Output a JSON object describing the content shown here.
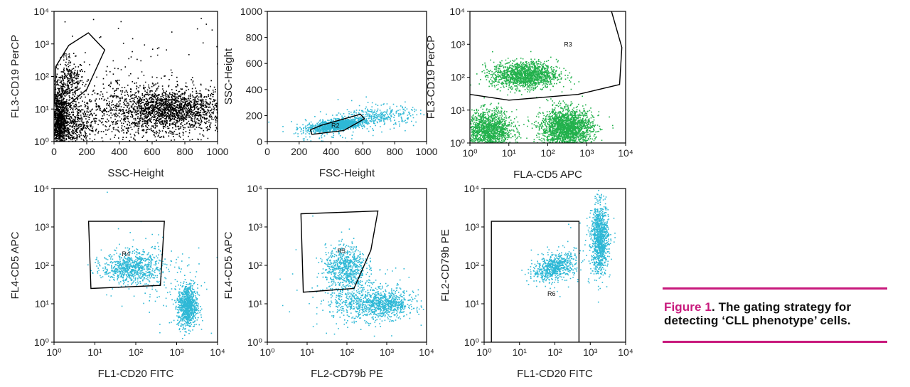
{
  "chart_data": [
    {
      "type": "scatter",
      "xlabel": "SSC-Height",
      "ylabel": "FL3-CD19 PerCP",
      "xscale": "linear",
      "yscale": "log",
      "xlim": [
        0,
        1000
      ],
      "ylim": [
        1,
        10000
      ],
      "x_ticks": [
        "0",
        "200",
        "400",
        "600",
        "800",
        "1000"
      ],
      "y_ticks": [
        "10⁰",
        "10¹",
        "10²",
        "10³",
        "10⁴"
      ],
      "color": "#000000",
      "gates": [
        {
          "name": "R1",
          "points": [
            [
              5,
              15
            ],
            [
              10,
              200
            ],
            [
              90,
              900
            ],
            [
              210,
              2200
            ],
            [
              310,
              650
            ],
            [
              200,
              40
            ],
            [
              100,
              15
            ]
          ]
        }
      ],
      "populations": [
        {
          "cx": 90,
          "cy": 80,
          "sx": 45,
          "sy": 0.32,
          "n": 280
        },
        {
          "cx": 700,
          "cy": 10,
          "sx": 170,
          "sy": 0.3,
          "n": 1500
        },
        {
          "cx": 520,
          "cy": 8,
          "sx": 300,
          "sy": 0.55,
          "n": 900
        },
        {
          "cx": 30,
          "cy": 4,
          "sx": 25,
          "sy": 0.5,
          "n": 1000
        },
        {
          "cx": 110,
          "cy": 3,
          "sx": 60,
          "sy": 0.45,
          "n": 500
        },
        {
          "cx": 500,
          "cy": 100,
          "sx": 290,
          "sy": 1.2,
          "n": 90
        }
      ]
    },
    {
      "type": "scatter",
      "xlabel": "FSC-Height",
      "ylabel": "SSC-Height",
      "xscale": "linear",
      "yscale": "linear",
      "xlim": [
        0,
        1000
      ],
      "ylim": [
        0,
        1000
      ],
      "x_ticks": [
        "0",
        "200",
        "400",
        "600",
        "800",
        "1000"
      ],
      "y_ticks": [
        "0",
        "200",
        "400",
        "600",
        "800",
        "1000"
      ],
      "color": "#2eb8d6",
      "gates": [
        {
          "name": "R2",
          "points": [
            [
              270,
              90
            ],
            [
              280,
              55
            ],
            [
              480,
              85
            ],
            [
              610,
              175
            ],
            [
              585,
              210
            ],
            [
              340,
              125
            ]
          ]
        }
      ],
      "populations": [
        {
          "cx": 440,
          "cy": 130,
          "sx": 85,
          "sy": 24,
          "n": 1300,
          "corr": 0.55
        },
        {
          "cx": 700,
          "cy": 200,
          "sx": 110,
          "sy": 40,
          "n": 330
        },
        {
          "cx": 350,
          "cy": 90,
          "sx": 140,
          "sy": 60,
          "n": 120
        }
      ]
    },
    {
      "type": "scatter",
      "xlabel": "FLA-CD5 APC",
      "ylabel": "FL3-CD19 PerCP",
      "xscale": "log",
      "yscale": "log",
      "xlim": [
        1,
        10000
      ],
      "ylim": [
        1,
        10000
      ],
      "x_ticks": [
        "10⁰",
        "10¹",
        "10²",
        "10³",
        "10⁴"
      ],
      "y_ticks": [
        "10⁰",
        "10¹",
        "10²",
        "10³",
        "10⁴"
      ],
      "color": "#22b14c",
      "gates": [
        {
          "name": "R3",
          "points": [
            [
              1,
              30
            ],
            [
              10,
              20
            ],
            [
              600,
              30
            ],
            [
              7000,
              60
            ],
            [
              8000,
              800
            ],
            [
              4000,
              14000
            ]
          ],
          "open": true
        }
      ],
      "populations": [
        {
          "cx": 25,
          "cy": 120,
          "sx": 0.42,
          "sy": 0.2,
          "n": 1500
        },
        {
          "cx": 3,
          "cy": 2.5,
          "sx": 0.3,
          "sy": 0.3,
          "n": 1400
        },
        {
          "cx": 300,
          "cy": 2.8,
          "sx": 0.33,
          "sy": 0.3,
          "n": 2000
        }
      ]
    },
    {
      "type": "scatter",
      "xlabel": "FL1-CD20 FITC",
      "ylabel": "FL4-CD5 APC",
      "xscale": "log",
      "yscale": "log",
      "xlim": [
        1,
        10000
      ],
      "ylim": [
        1,
        10000
      ],
      "x_ticks": [
        "10⁰",
        "10¹",
        "10²",
        "10³",
        "10⁴"
      ],
      "y_ticks": [
        "10⁰",
        "10¹",
        "10²",
        "10³",
        "10⁴"
      ],
      "color": "#2eb8d6",
      "gates": [
        {
          "name": "R4",
          "points": [
            [
              7,
              1400
            ],
            [
              500,
              1400
            ],
            [
              400,
              30
            ],
            [
              8,
              25
            ]
          ]
        }
      ],
      "populations": [
        {
          "cx": 75,
          "cy": 90,
          "sx": 0.35,
          "sy": 0.2,
          "n": 750
        },
        {
          "cx": 1800,
          "cy": 9,
          "sx": 0.12,
          "sy": 0.28,
          "n": 900
        },
        {
          "cx": 300,
          "cy": 60,
          "sx": 0.6,
          "sy": 0.6,
          "n": 130
        }
      ]
    },
    {
      "type": "scatter",
      "xlabel": "FL2-CD79b PE",
      "ylabel": "FL4-CD5 APC",
      "xscale": "log",
      "yscale": "log",
      "xlim": [
        1,
        10000
      ],
      "ylim": [
        1,
        10000
      ],
      "x_ticks": [
        "10⁰",
        "10¹",
        "10²",
        "10³",
        "10⁴"
      ],
      "y_ticks": [
        "10⁰",
        "10¹",
        "10²",
        "10³",
        "10⁴"
      ],
      "color": "#2eb8d6",
      "gates": [
        {
          "name": "R5",
          "points": [
            [
              7,
              2200
            ],
            [
              600,
              2600
            ],
            [
              400,
              250
            ],
            [
              150,
              25
            ],
            [
              8,
              20
            ]
          ]
        }
      ],
      "populations": [
        {
          "cx": 90,
          "cy": 90,
          "sx": 0.25,
          "sy": 0.28,
          "n": 650
        },
        {
          "cx": 900,
          "cy": 10,
          "sx": 0.35,
          "sy": 0.18,
          "n": 700
        },
        {
          "cx": 180,
          "cy": 12,
          "sx": 0.4,
          "sy": 0.25,
          "n": 350
        },
        {
          "cx": 100,
          "cy": 30,
          "sx": 0.7,
          "sy": 0.6,
          "n": 130
        }
      ]
    },
    {
      "type": "scatter",
      "xlabel": "FL1-CD20 FITC",
      "ylabel": "FL2-CD79b PE",
      "xscale": "log",
      "yscale": "log",
      "xlim": [
        1,
        10000
      ],
      "ylim": [
        1,
        10000
      ],
      "x_ticks": [
        "10⁰",
        "10¹",
        "10²",
        "10³",
        "10⁴"
      ],
      "y_ticks": [
        "10⁰",
        "10¹",
        "10²",
        "10³",
        "10⁴"
      ],
      "color": "#2eb8d6",
      "gates": [
        {
          "name": "R6",
          "points": [
            [
              1.6,
              0.8
            ],
            [
              1.6,
              1400
            ],
            [
              480,
              1400
            ],
            [
              480,
              0.8
            ]
          ],
          "open": true
        }
      ],
      "populations": [
        {
          "cx": 90,
          "cy": 90,
          "sx": 0.3,
          "sy": 0.17,
          "n": 620,
          "corr": 0.4
        },
        {
          "cx": 1800,
          "cy": 500,
          "sx": 0.12,
          "sy": 0.45,
          "n": 1000
        },
        {
          "cx": 300,
          "cy": 150,
          "sx": 0.5,
          "sy": 0.4,
          "n": 80
        }
      ]
    }
  ],
  "caption": {
    "label": "Figure 1",
    "text": ". The gating strategy for detecting ‘CLL phenotype’ cells."
  },
  "colors": {
    "accent": "#c8197c",
    "green": "#22b14c",
    "cyan": "#2eb8d6",
    "black": "#000000"
  }
}
